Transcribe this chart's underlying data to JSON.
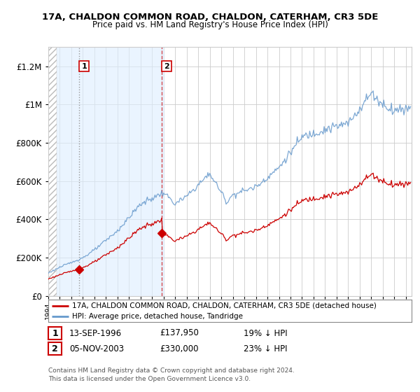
{
  "title": "17A, CHALDON COMMON ROAD, CHALDON, CATERHAM, CR3 5DE",
  "subtitle": "Price paid vs. HM Land Registry's House Price Index (HPI)",
  "legend_line1": "17A, CHALDON COMMON ROAD, CHALDON, CATERHAM, CR3 5DE (detached house)",
  "legend_line2": "HPI: Average price, detached house, Tandridge",
  "transaction1_date": "13-SEP-1996",
  "transaction1_price": "£137,950",
  "transaction1_hpi": "19% ↓ HPI",
  "transaction1_year": 1996.7,
  "transaction1_value": 137950,
  "transaction2_date": "05-NOV-2003",
  "transaction2_price": "£330,000",
  "transaction2_hpi": "23% ↓ HPI",
  "transaction2_year": 2003.85,
  "transaction2_value": 330000,
  "footer": "Contains HM Land Registry data © Crown copyright and database right 2024.\nThis data is licensed under the Open Government Licence v3.0.",
  "ylim_max": 1300000,
  "xlim_min": 1994.0,
  "xlim_max": 2025.5,
  "price_color": "#cc0000",
  "hpi_color": "#6699cc",
  "hpi_shade_color": "#ddeeff",
  "background_color": "#ffffff",
  "grid_color": "#cccccc",
  "hatch_color": "#bbbbbb"
}
